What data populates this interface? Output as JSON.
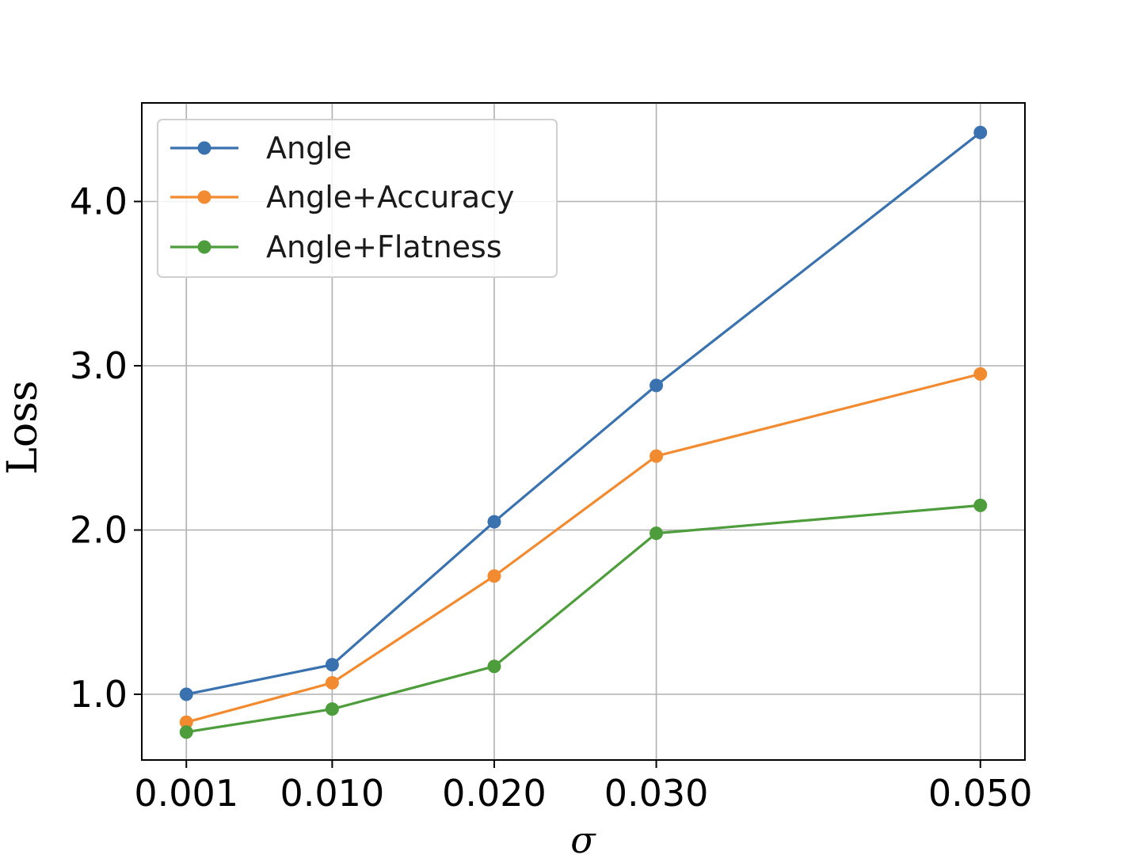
{
  "chart_data": {
    "type": "line",
    "x": [
      "0.001",
      "0.010",
      "0.020",
      "0.030",
      "0.050"
    ],
    "x_values": [
      0.001,
      0.01,
      0.02,
      0.03,
      0.05
    ],
    "xlabel": "σ",
    "ylabel": "Loss",
    "ylim": [
      0.6,
      4.6
    ],
    "yticks": [
      "1.0",
      "2.0",
      "3.0",
      "4.0"
    ],
    "ytick_values": [
      1.0,
      2.0,
      3.0,
      4.0
    ],
    "grid": true,
    "legend_position": "top-left",
    "series": [
      {
        "name": "Angle",
        "color": "#3a72b0",
        "values": [
          1.0,
          1.18,
          2.05,
          2.88,
          4.42
        ]
      },
      {
        "name": "Angle+Accuracy",
        "color": "#f28a30",
        "values": [
          0.83,
          1.07,
          1.72,
          2.45,
          2.95
        ]
      },
      {
        "name": "Angle+Flatness",
        "color": "#4e9d3c",
        "values": [
          0.77,
          0.91,
          1.17,
          1.98,
          2.15
        ]
      }
    ]
  }
}
